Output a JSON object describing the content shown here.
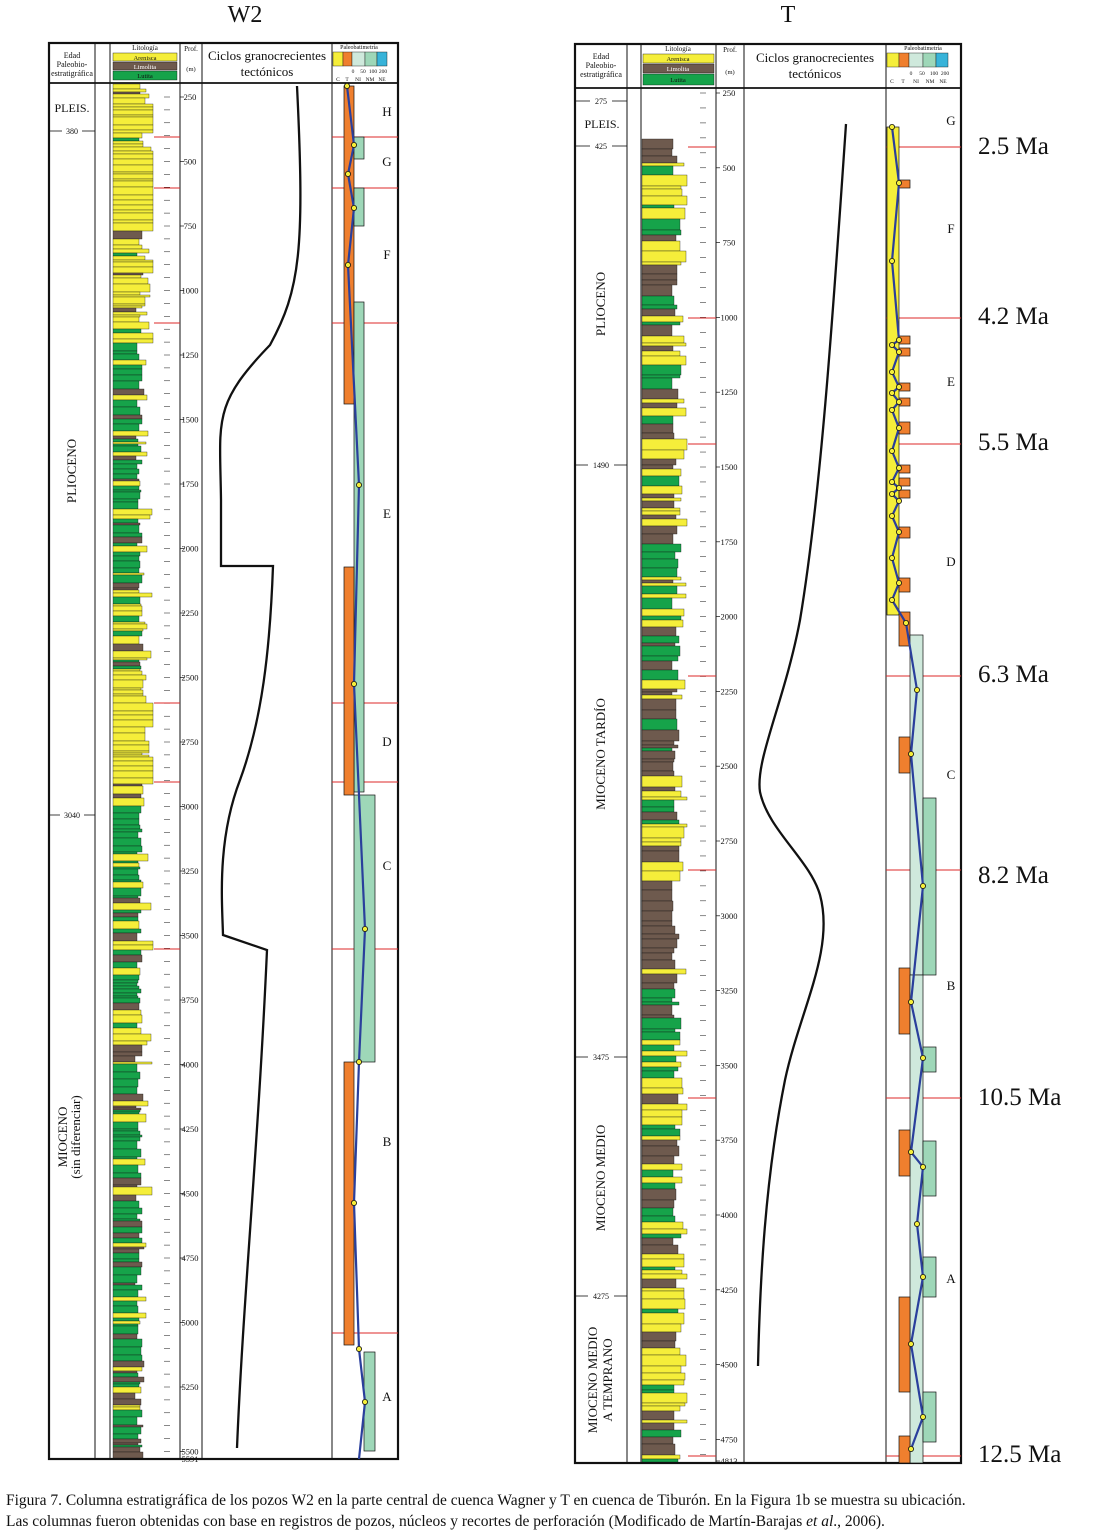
{
  "colors": {
    "sandstone": "#f5ee3a",
    "siltstone": "#6e5a4e",
    "shale": "#16a34a",
    "sequence_orange": "#ef7f2e",
    "sequence_green": "#9ed7b8",
    "bathymetry_line": "#2a3f9c",
    "boundary_red": "#dd2a2a",
    "cyan_header": "#38b3d9"
  },
  "wells": [
    {
      "title": "W2",
      "header": {
        "age": [
          "Edad",
          "Paleobio-",
          "estratigráfica"
        ],
        "lithology": "Litología",
        "legend": [
          "Arenisca",
          "Limolita",
          "Lutita"
        ],
        "depth": "Prof.",
        "depth_unit": "(m)",
        "cycles": [
          "Ciclos granocrecientes",
          "tectónicos"
        ],
        "bathymetry": "Paleobatimetría",
        "bathy_numbers": [
          "0",
          "50",
          "100",
          "200"
        ],
        "bathy_codes": [
          "C",
          "T",
          "NI",
          "NM",
          "NE"
        ]
      },
      "depth_ticks": [
        "250",
        "500",
        "750",
        "1000",
        "1250",
        "1500",
        "1750",
        "2000",
        "2250",
        "2500",
        "2750",
        "3000",
        "3250",
        "3500",
        "3750",
        "4000",
        "4250",
        "4500",
        "4750",
        "5000",
        "5250",
        "5500",
        "5591"
      ],
      "age_markers": [
        "380",
        "3040"
      ],
      "epochs": [
        "PLEIS.",
        "PLIOCENO",
        "MIOCENO",
        "(sin diferenciar)"
      ],
      "sequences": [
        "H",
        "G",
        "F",
        "E",
        "D",
        "C",
        "B",
        "A"
      ]
    },
    {
      "title": "T",
      "header": {
        "age": [
          "Edad",
          "Paleobio-",
          "estratigráfica"
        ],
        "lithology": "Litología",
        "legend": [
          "Arenisca",
          "Limolita",
          "Lutita"
        ],
        "depth": "Prof.",
        "depth_unit": "(m)",
        "cycles": [
          "Ciclos granocrecientes",
          "tectónicos"
        ],
        "bathymetry": "Paleobatimetría",
        "bathy_numbers": [
          "0",
          "50",
          "100",
          "200"
        ],
        "bathy_codes": [
          "C",
          "T",
          "NI",
          "NM",
          "NE"
        ]
      },
      "depth_ticks": [
        "250",
        "500",
        "750",
        "1000",
        "1250",
        "1500",
        "1750",
        "2000",
        "2250",
        "2500",
        "2750",
        "3000",
        "3250",
        "3500",
        "3750",
        "4000",
        "4250",
        "4500",
        "4750",
        "4813"
      ],
      "age_markers": [
        "275",
        "425",
        "1490",
        "3475",
        "4275"
      ],
      "epochs": [
        "PLEIS.",
        "PLIOCENO",
        "MIOCENO TARDÍO",
        "MIOCENO MEDIO",
        "MIOCENO MEDIO",
        "A TEMPRANO"
      ],
      "sequences": [
        "G",
        "F",
        "E",
        "D",
        "C",
        "B",
        "A"
      ],
      "ages": [
        "2.5 Ma",
        "4.2 Ma",
        "5.5 Ma",
        "6.3 Ma",
        "8.2 Ma",
        "10.5 Ma",
        "12.5 Ma"
      ]
    }
  ],
  "caption": {
    "line1": "Figura 7. Columna estratigráfica de los pozos W2 en la parte central de cuenca Wagner y T en cuenca de Tiburón. En la Figura 1b se muestra su ubicación.",
    "line2_start": "Las columnas fueron obtenidas con base en registros de pozos, núcleos y recortes de perforación (Modificado de Martín-Barajas ",
    "line2_italic": "et al",
    "line2_end": "., 2006)."
  }
}
